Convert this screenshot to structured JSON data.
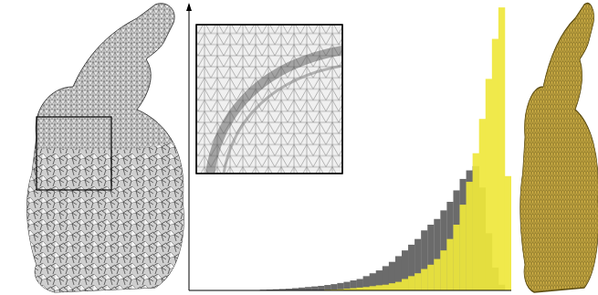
{
  "chart_data": {
    "type": "histogram",
    "bins": [
      0.2,
      0.22,
      0.24,
      0.26,
      0.28,
      0.3,
      0.32,
      0.34,
      0.36,
      0.38,
      0.4,
      0.42,
      0.44,
      0.46,
      0.48,
      0.5,
      0.52,
      0.54,
      0.56,
      0.58,
      0.6,
      0.62,
      0.64,
      0.66,
      0.68,
      0.7,
      0.72,
      0.74,
      0.76,
      0.78,
      0.8,
      0.82,
      0.84,
      0.86,
      0.88,
      0.9,
      0.92,
      0.94,
      0.96,
      0.98,
      1.0
    ],
    "series": [
      {
        "color": "#6b6b6b",
        "values": [
          0,
          0.002,
          0.003,
          0.004,
          0.005,
          0.006,
          0.008,
          0.01,
          0.012,
          0.014,
          0.016,
          0.019,
          0.022,
          0.026,
          0.03,
          0.035,
          0.04,
          0.05,
          0.06,
          0.07,
          0.085,
          0.1,
          0.12,
          0.14,
          0.16,
          0.18,
          0.21,
          0.23,
          0.25,
          0.28,
          0.31,
          0.35,
          0.39,
          0.42,
          0.435,
          0.36,
          0.2,
          0.08,
          0.02,
          0
        ]
      },
      {
        "color": "#efe83c",
        "values": [
          0,
          0,
          0,
          0,
          0,
          0,
          0,
          0,
          0,
          0,
          0,
          0.002,
          0.003,
          0.004,
          0.006,
          0.008,
          0.01,
          0.012,
          0.015,
          0.018,
          0.02,
          0.025,
          0.03,
          0.04,
          0.05,
          0.06,
          0.075,
          0.09,
          0.11,
          0.14,
          0.18,
          0.23,
          0.3,
          0.38,
          0.48,
          0.6,
          0.74,
          0.88,
          0.99,
          0.4
        ]
      }
    ],
    "xlim": [
      0,
      1
    ],
    "ylim": [
      0,
      1
    ],
    "tick_labels": false,
    "grid": false
  }
}
